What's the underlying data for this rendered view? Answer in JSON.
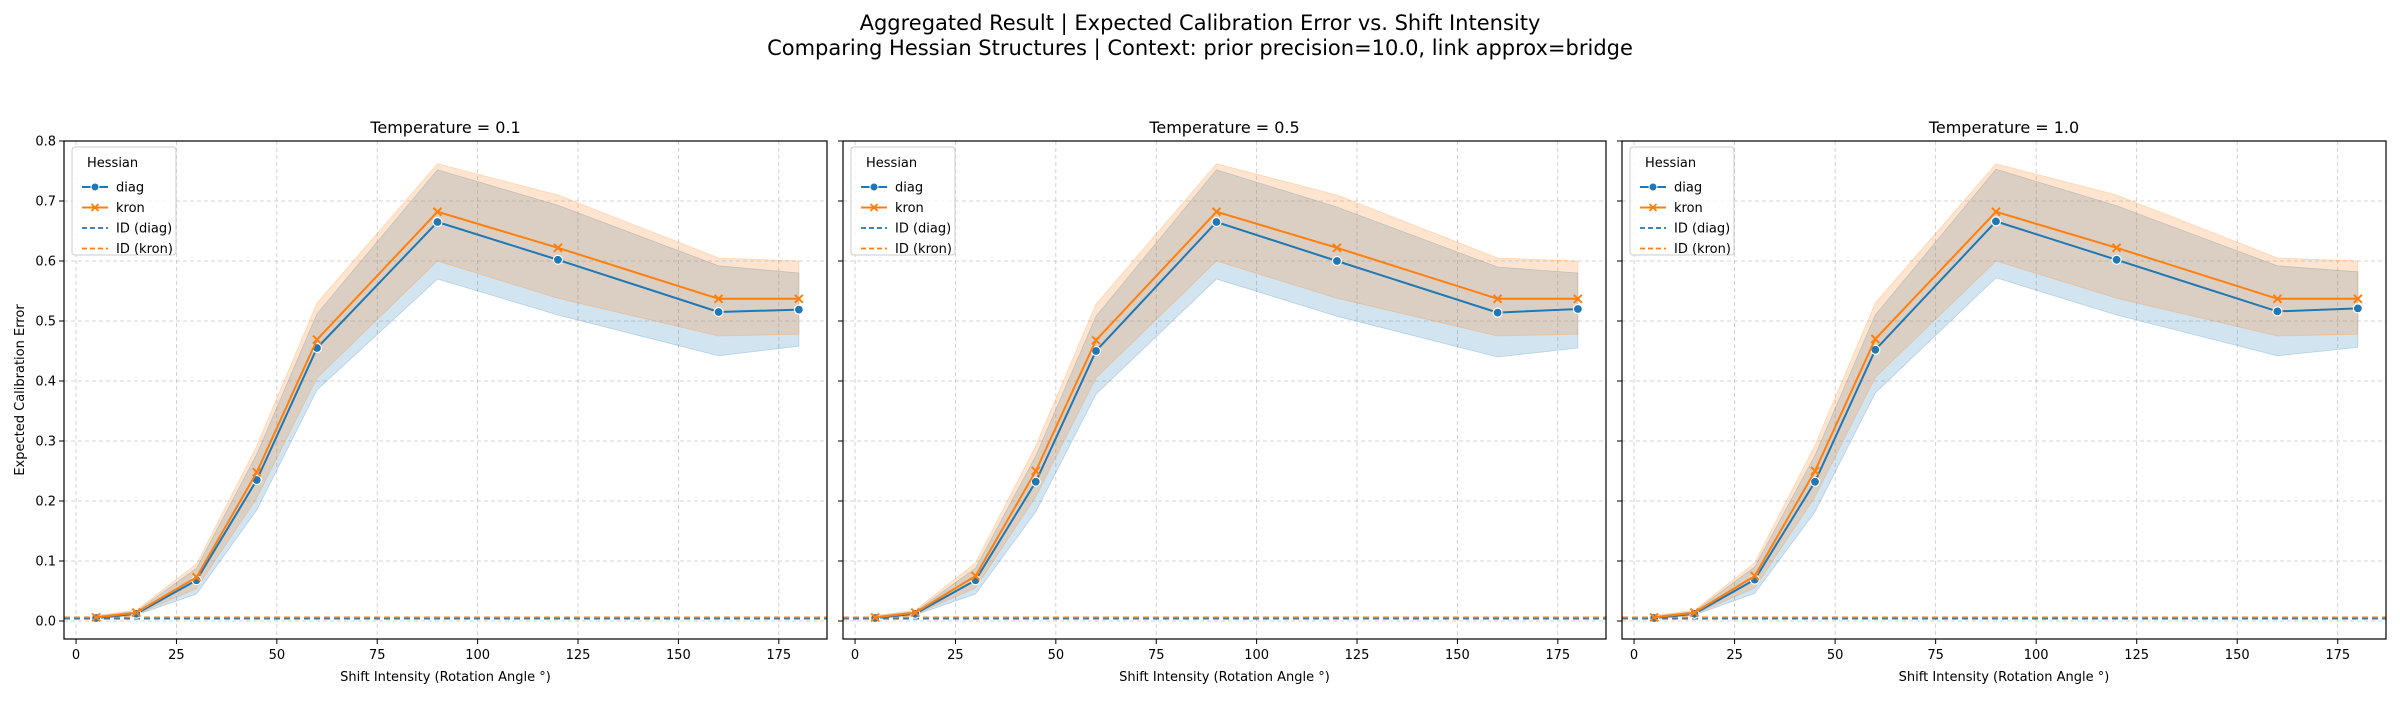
{
  "figure": {
    "title_line1": "Aggregated Result | Expected Calibration Error vs. Shift Intensity",
    "title_line2": "Comparing Hessian Structures | Context: prior precision=10.0, link approx=bridge"
  },
  "colors": {
    "diag": "#1f77b4",
    "kron": "#ff7f0e",
    "grid": "#b0b0b0",
    "axis": "#000000"
  },
  "legend": {
    "title": "Hessian",
    "items": [
      {
        "label": "diag",
        "style": "line-marker-circle",
        "color": "#1f77b4"
      },
      {
        "label": "kron",
        "style": "line-marker-x",
        "color": "#ff7f0e"
      },
      {
        "label": "ID (diag)",
        "style": "dashed",
        "color": "#1f77b4"
      },
      {
        "label": "ID (kron)",
        "style": "dashed",
        "color": "#ff7f0e"
      }
    ],
    "placement": "upper-left"
  },
  "chart_data": [
    {
      "type": "line",
      "title": "Temperature = 0.1",
      "xlabel": "Shift Intensity (Rotation Angle °)",
      "ylabel": "Expected Calibration Error",
      "xlim": [
        -3,
        187
      ],
      "ylim": [
        -0.03,
        0.8
      ],
      "xticks": [
        "0",
        "25",
        "50",
        "75",
        "100",
        "125",
        "150",
        "175"
      ],
      "yticks": [
        "0.0",
        "0.1",
        "0.2",
        "0.3",
        "0.4",
        "0.5",
        "0.6",
        "0.7",
        "0.8"
      ],
      "grid": true,
      "x": [
        5,
        15,
        30,
        45,
        60,
        90,
        120,
        160,
        180
      ],
      "series": [
        {
          "name": "diag",
          "values": [
            0.005,
            0.012,
            0.068,
            0.235,
            0.455,
            0.665,
            0.602,
            0.515,
            0.519
          ],
          "band_low": [
            0.003,
            0.01,
            0.045,
            0.185,
            0.385,
            0.57,
            0.51,
            0.442,
            0.458
          ],
          "band_high": [
            0.008,
            0.016,
            0.088,
            0.278,
            0.512,
            0.752,
            0.693,
            0.592,
            0.58
          ]
        },
        {
          "name": "kron",
          "values": [
            0.006,
            0.014,
            0.073,
            0.248,
            0.469,
            0.682,
            0.622,
            0.537,
            0.537
          ],
          "band_low": [
            0.004,
            0.011,
            0.054,
            0.205,
            0.405,
            0.6,
            0.538,
            0.475,
            0.478
          ],
          "band_high": [
            0.009,
            0.018,
            0.095,
            0.292,
            0.53,
            0.762,
            0.71,
            0.605,
            0.6
          ]
        }
      ],
      "reference_lines": [
        {
          "name": "ID (diag)",
          "y": 0.004
        },
        {
          "name": "ID (kron)",
          "y": 0.006
        }
      ]
    },
    {
      "type": "line",
      "title": "Temperature = 0.5",
      "xlabel": "Shift Intensity (Rotation Angle °)",
      "ylabel": "",
      "xlim": [
        -3,
        187
      ],
      "ylim": [
        -0.03,
        0.8
      ],
      "xticks": [
        "0",
        "25",
        "50",
        "75",
        "100",
        "125",
        "150",
        "175"
      ],
      "yticks": [],
      "grid": true,
      "x": [
        5,
        15,
        30,
        45,
        60,
        90,
        120,
        160,
        180
      ],
      "series": [
        {
          "name": "diag",
          "values": [
            0.005,
            0.012,
            0.068,
            0.232,
            0.45,
            0.665,
            0.6,
            0.514,
            0.52
          ],
          "band_low": [
            0.003,
            0.01,
            0.045,
            0.182,
            0.378,
            0.57,
            0.508,
            0.44,
            0.455
          ],
          "band_high": [
            0.008,
            0.016,
            0.088,
            0.275,
            0.508,
            0.752,
            0.69,
            0.59,
            0.58
          ]
        },
        {
          "name": "kron",
          "values": [
            0.006,
            0.014,
            0.075,
            0.25,
            0.468,
            0.682,
            0.622,
            0.537,
            0.537
          ],
          "band_low": [
            0.004,
            0.011,
            0.055,
            0.207,
            0.405,
            0.6,
            0.538,
            0.475,
            0.478
          ],
          "band_high": [
            0.009,
            0.018,
            0.097,
            0.292,
            0.528,
            0.762,
            0.71,
            0.605,
            0.6
          ]
        }
      ],
      "reference_lines": [
        {
          "name": "ID (diag)",
          "y": 0.004
        },
        {
          "name": "ID (kron)",
          "y": 0.006
        }
      ]
    },
    {
      "type": "line",
      "title": "Temperature = 1.0",
      "xlabel": "Shift Intensity (Rotation Angle °)",
      "ylabel": "",
      "xlim": [
        -3,
        187
      ],
      "ylim": [
        -0.03,
        0.8
      ],
      "xticks": [
        "0",
        "25",
        "50",
        "75",
        "100",
        "125",
        "150",
        "175"
      ],
      "yticks": [],
      "grid": true,
      "x": [
        5,
        15,
        30,
        45,
        60,
        90,
        120,
        160,
        180
      ],
      "series": [
        {
          "name": "diag",
          "values": [
            0.005,
            0.012,
            0.069,
            0.232,
            0.452,
            0.666,
            0.602,
            0.516,
            0.521
          ],
          "band_low": [
            0.003,
            0.01,
            0.046,
            0.182,
            0.38,
            0.572,
            0.51,
            0.442,
            0.456
          ],
          "band_high": [
            0.008,
            0.016,
            0.09,
            0.276,
            0.51,
            0.753,
            0.692,
            0.592,
            0.582
          ]
        },
        {
          "name": "kron",
          "values": [
            0.006,
            0.014,
            0.075,
            0.25,
            0.47,
            0.682,
            0.622,
            0.537,
            0.537
          ],
          "band_low": [
            0.004,
            0.011,
            0.055,
            0.207,
            0.406,
            0.6,
            0.538,
            0.475,
            0.478
          ],
          "band_high": [
            0.009,
            0.018,
            0.097,
            0.293,
            0.53,
            0.762,
            0.71,
            0.605,
            0.6
          ]
        }
      ],
      "reference_lines": [
        {
          "name": "ID (diag)",
          "y": 0.004
        },
        {
          "name": "ID (kron)",
          "y": 0.006
        }
      ]
    }
  ]
}
